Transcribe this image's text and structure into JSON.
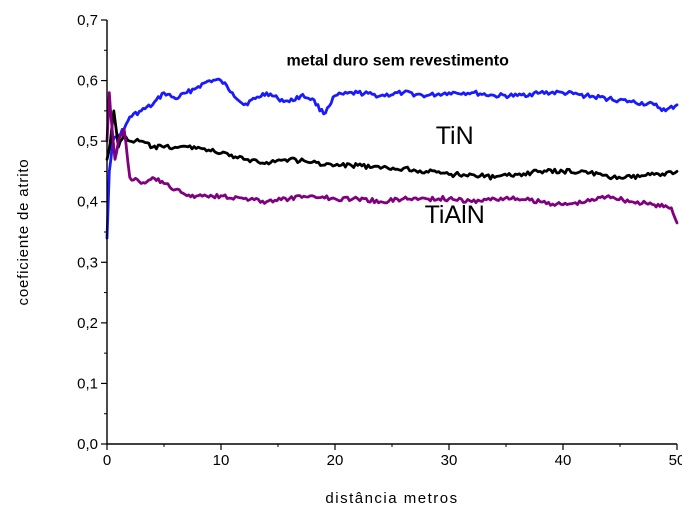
{
  "chart_data": {
    "type": "line",
    "xlabel": "distância metros",
    "ylabel": "coeficiente de atrito",
    "xlim": [
      0,
      50
    ],
    "ylim": [
      0.0,
      0.7
    ],
    "x_ticks": [
      "0",
      "10",
      "20",
      "30",
      "40",
      "50"
    ],
    "y_ticks": [
      "0,0",
      "0,1",
      "0,2",
      "0,3",
      "0,4",
      "0,5",
      "0,6",
      "0,7"
    ],
    "grid": false,
    "series": [
      {
        "name": "metal duro sem revestimento",
        "color": "#1a1aff",
        "x": [
          0,
          0.2,
          0.5,
          1,
          1.5,
          2,
          3,
          4,
          5,
          6,
          7,
          8,
          9,
          10,
          11,
          12,
          13,
          14,
          15,
          16,
          17,
          18,
          19,
          20,
          22,
          24,
          26,
          28,
          30,
          32,
          34,
          36,
          38,
          40,
          42,
          44,
          46,
          48,
          49,
          50
        ],
        "y": [
          0.34,
          0.45,
          0.5,
          0.51,
          0.52,
          0.54,
          0.55,
          0.56,
          0.58,
          0.57,
          0.58,
          0.59,
          0.6,
          0.6,
          0.58,
          0.56,
          0.57,
          0.58,
          0.57,
          0.565,
          0.575,
          0.57,
          0.545,
          0.575,
          0.58,
          0.575,
          0.58,
          0.575,
          0.58,
          0.58,
          0.575,
          0.575,
          0.58,
          0.58,
          0.575,
          0.57,
          0.565,
          0.56,
          0.55,
          0.56
        ]
      },
      {
        "name": "TiN",
        "color": "#000000",
        "x": [
          0,
          0.3,
          0.6,
          1,
          1.5,
          2,
          3,
          4,
          5,
          6,
          8,
          10,
          12,
          14,
          16,
          18,
          20,
          22,
          24,
          26,
          28,
          30,
          32,
          34,
          36,
          38,
          40,
          42,
          44,
          46,
          48,
          50
        ],
        "y": [
          0.47,
          0.5,
          0.55,
          0.49,
          0.51,
          0.5,
          0.5,
          0.49,
          0.49,
          0.49,
          0.49,
          0.48,
          0.47,
          0.465,
          0.47,
          0.465,
          0.46,
          0.46,
          0.455,
          0.455,
          0.45,
          0.445,
          0.445,
          0.44,
          0.445,
          0.45,
          0.45,
          0.45,
          0.44,
          0.44,
          0.445,
          0.45
        ]
      },
      {
        "name": "TiAlN",
        "color": "#800080",
        "x": [
          0,
          0.2,
          0.4,
          0.7,
          1,
          1.5,
          2,
          3,
          4,
          5,
          6,
          7,
          8,
          10,
          12,
          14,
          16,
          18,
          20,
          22,
          24,
          26,
          28,
          30,
          32,
          34,
          36,
          38,
          40,
          42,
          44,
          46,
          48,
          49.5,
          50
        ],
        "y": [
          0.5,
          0.58,
          0.53,
          0.47,
          0.5,
          0.52,
          0.44,
          0.43,
          0.44,
          0.43,
          0.42,
          0.41,
          0.41,
          0.41,
          0.405,
          0.4,
          0.405,
          0.41,
          0.405,
          0.405,
          0.4,
          0.405,
          0.405,
          0.405,
          0.4,
          0.405,
          0.405,
          0.4,
          0.395,
          0.4,
          0.41,
          0.4,
          0.395,
          0.39,
          0.365
        ]
      }
    ],
    "annotations": [
      {
        "text": "metal duro sem revestimento",
        "x": 25.5,
        "y": 0.625,
        "bold": true
      },
      {
        "text": "TiN",
        "x": 30.5,
        "y": 0.495,
        "bold": false
      },
      {
        "text": "TiAlN",
        "x": 30.5,
        "y": 0.365,
        "bold": false
      }
    ]
  }
}
